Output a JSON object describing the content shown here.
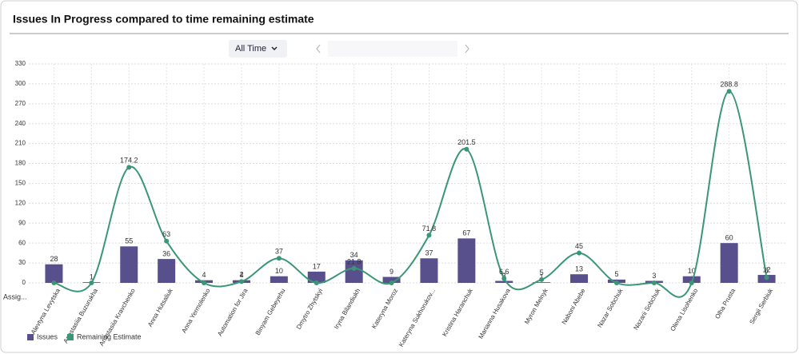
{
  "chart_data": {
    "type": "bar-line",
    "title": "Issues In Progress compared to time remaining estimate",
    "filter": "All Time",
    "x_label": "Assig...",
    "categories": [
      "Alevtyna Levytska",
      "Anastasiia Buzurukha",
      "Anastasiia Kravchenko",
      "Anna Hutsaliuk",
      "Anna Yermolenko",
      "Automation for Jira",
      "Binyam Gebeyehu",
      "Dmytro Zhytskyi",
      "Iryna Bilandiukh",
      "Kateryna Moroz",
      "Kateryna Sukhorukov...",
      "Kristina Haranchuk",
      "Marianna Husakova",
      "Myron Melnyk",
      "Naboni Abebe",
      "Nazar Sobchuk",
      "Nazarii Sobchuk",
      "Olena Lisohenko",
      "Olha Prusta",
      "Sergii Serbiuk"
    ],
    "series": [
      {
        "name": "Issues",
        "color": "#58508d",
        "kind": "bar",
        "values": [
          28,
          1,
          55,
          36,
          4,
          4,
          10,
          17,
          34,
          9,
          37,
          67,
          3,
          1,
          13,
          5,
          3,
          10,
          60,
          12
        ]
      },
      {
        "name": "Remaining Estimate",
        "color": "#3a9775",
        "kind": "line",
        "values": [
          0,
          0,
          174.2,
          63,
          0,
          2,
          37,
          0,
          21.8,
          0,
          71.8,
          201.5,
          6.6,
          5,
          45,
          0,
          0,
          0,
          288.8,
          8
        ]
      }
    ],
    "ylim": [
      0,
      330
    ],
    "yticks": [
      0,
      30,
      60,
      90,
      120,
      150,
      180,
      210,
      240,
      270,
      300,
      330
    ],
    "grid": true
  }
}
